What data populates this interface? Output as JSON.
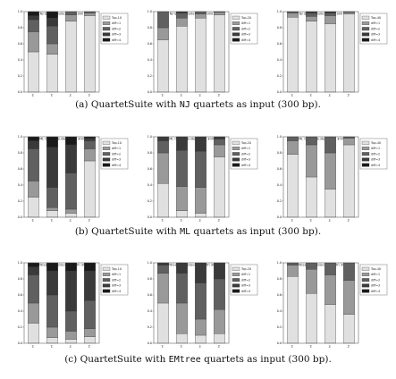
{
  "colors": {
    "top": "#e0e0e0",
    "diff1": "#999999",
    "diff2": "#606060",
    "diff3": "#3a3a3a",
    "diff4": "#1a1a1a",
    "frame": "#444444"
  },
  "legend_top_sizes": [
    "10",
    "20",
    "40"
  ],
  "rows": [
    {
      "caption": {
        "prefix": "(a) QuartetSuite with ",
        "code": "NJ",
        "suffix": " quartets as input (300 bp)."
      },
      "charts": [
        {
          "title": "NJ QuartetSuite length 300",
          "legend": [
            "Top-10",
            "diff=1",
            "diff=2",
            "diff=3",
            "diff=4"
          ],
          "categories": [
            "quartet",
            "quartet",
            "qpuzzle",
            "ntq"
          ],
          "yticks": [
            "0.0",
            "0.2",
            "0.4",
            "0.6",
            "0.8",
            "1.0"
          ],
          "series_values": [
            [
              0.5,
              0.47,
              0.88,
              0.95
            ],
            [
              0.25,
              0.13,
              0.08,
              0.03
            ],
            [
              0.15,
              0.22,
              0.04,
              0.02
            ],
            [
              0.05,
              0.1,
              0,
              0
            ],
            [
              0.05,
              0.08,
              0,
              0
            ]
          ]
        },
        {
          "title": "NJ QuartetSuite length 300",
          "legend": [
            "Top-20",
            "diff=1",
            "diff=2",
            "diff=3",
            "diff=4"
          ],
          "categories": [
            "quartet",
            "quartet",
            "qpuzzle",
            "ntq"
          ],
          "yticks": [
            "0.0",
            "0.2",
            "0.4",
            "0.6",
            "0.8",
            "1.0"
          ],
          "series_values": [
            [
              0.65,
              0.82,
              0.92,
              0.96
            ],
            [
              0.15,
              0.1,
              0.05,
              0.03
            ],
            [
              0.2,
              0.06,
              0.03,
              0.01
            ],
            [
              0,
              0.02,
              0,
              0
            ],
            [
              0,
              0,
              0,
              0
            ]
          ]
        },
        {
          "title": "NJ QuartetSuite length 300",
          "legend": [
            "Top-40",
            "diff=1",
            "diff=2",
            "diff=3",
            "diff=4"
          ],
          "categories": [
            "quartet",
            "quartet",
            "qpuzzle",
            "ntq"
          ],
          "yticks": [
            "0.0",
            "0.2",
            "0.4",
            "0.6",
            "0.8",
            "1.0"
          ],
          "series_values": [
            [
              0.93,
              0.88,
              0.85,
              0.97
            ],
            [
              0.05,
              0.06,
              0.1,
              0.02
            ],
            [
              0.02,
              0.04,
              0.03,
              0.01
            ],
            [
              0,
              0.02,
              0.02,
              0
            ],
            [
              0,
              0,
              0,
              0
            ]
          ]
        }
      ]
    },
    {
      "caption": {
        "prefix": "(b) QuartetSuite with ",
        "code": "ML",
        "suffix": " quartets as input (300 bp)."
      },
      "charts": [
        {
          "title": "ML QuartetSuite length 300",
          "legend": [
            "Top-10",
            "diff=1",
            "diff=2",
            "diff=3",
            "diff=4"
          ],
          "categories": [
            "quartet",
            "quartet",
            "qpuzzle",
            "ntq"
          ],
          "yticks": [
            "0.0",
            "0.2",
            "0.4",
            "0.6",
            "0.8",
            "1.0"
          ],
          "series_values": [
            [
              0.25,
              0.08,
              0.05,
              0.7
            ],
            [
              0.2,
              0.04,
              0.05,
              0.15
            ],
            [
              0.4,
              0.25,
              0.45,
              0.1
            ],
            [
              0.1,
              0.5,
              0.35,
              0.03
            ],
            [
              0.05,
              0.13,
              0.1,
              0.02
            ]
          ]
        },
        {
          "title": "ML QuartetSuite length 300",
          "legend": [
            "Top-20",
            "diff=1",
            "diff=2",
            "diff=3",
            "diff=4"
          ],
          "categories": [
            "quartet",
            "quartet",
            "qpuzzle",
            "ntq"
          ],
          "yticks": [
            "0.0",
            "0.2",
            "0.4",
            "0.6",
            "0.8",
            "1.0"
          ],
          "series_values": [
            [
              0.42,
              0.08,
              0.05,
              0.75
            ],
            [
              0.38,
              0.3,
              0.32,
              0.15
            ],
            [
              0.15,
              0.45,
              0.45,
              0.07
            ],
            [
              0.05,
              0.17,
              0.18,
              0.03
            ],
            [
              0,
              0,
              0,
              0
            ]
          ]
        },
        {
          "title": "ML QuartetSuite length 300",
          "legend": [
            "Top-40",
            "diff=1",
            "diff=2",
            "diff=3",
            "diff=4"
          ],
          "categories": [
            "quartet",
            "quartet",
            "qpuzzle",
            "ntq"
          ],
          "yticks": [
            "0.0",
            "0.2",
            "0.4",
            "0.6",
            "0.8",
            "1.0"
          ],
          "series_values": [
            [
              0.78,
              0.5,
              0.35,
              0.9
            ],
            [
              0.17,
              0.4,
              0.45,
              0.08
            ],
            [
              0.05,
              0.1,
              0.2,
              0.02
            ],
            [
              0,
              0,
              0,
              0
            ],
            [
              0,
              0,
              0,
              0
            ]
          ]
        }
      ]
    },
    {
      "caption": {
        "prefix": "(c) QuartetSuite with ",
        "code": "EMtree",
        "suffix": " quartets as input (300 bp)."
      },
      "charts": [
        {
          "title": "EMtree QuartetSuite length 300",
          "legend": [
            "Top-10",
            "diff=1",
            "diff=2",
            "diff=3",
            "diff=4"
          ],
          "categories": [
            "quartet",
            "quartet",
            "qpuzzle",
            "ntq"
          ],
          "yticks": [
            "0.0",
            "0.2",
            "0.4",
            "0.6",
            "0.8",
            "1.0"
          ],
          "series_values": [
            [
              0.25,
              0.07,
              0.05,
              0.08
            ],
            [
              0.25,
              0.13,
              0.1,
              0.1
            ],
            [
              0.35,
              0.4,
              0.25,
              0.35
            ],
            [
              0.1,
              0.3,
              0.5,
              0.37
            ],
            [
              0.05,
              0.1,
              0.1,
              0.1
            ]
          ]
        },
        {
          "title": "EMtree QuartetSuite length 300",
          "legend": [
            "Top-20",
            "diff=1",
            "diff=2",
            "diff=3",
            "diff=4"
          ],
          "categories": [
            "quartet",
            "quartet",
            "qpuzzle",
            "ntq"
          ],
          "yticks": [
            "0.0",
            "0.2",
            "0.4",
            "0.6",
            "0.8",
            "1.0"
          ],
          "series_values": [
            [
              0.5,
              0.12,
              0.1,
              0.12
            ],
            [
              0.37,
              0.38,
              0.2,
              0.3
            ],
            [
              0.1,
              0.37,
              0.45,
              0.38
            ],
            [
              0.03,
              0.13,
              0.25,
              0.2
            ],
            [
              0,
              0,
              0,
              0
            ]
          ]
        },
        {
          "title": "EMtree QuartetSuite length 300",
          "legend": [
            "Top-40",
            "diff=1",
            "diff=2",
            "diff=3",
            "diff=4"
          ],
          "categories": [
            "quartet",
            "quartet",
            "qpuzzle",
            "ntq"
          ],
          "yticks": [
            "0.0",
            "0.2",
            "0.4",
            "0.6",
            "0.8",
            "1.0"
          ],
          "series_values": [
            [
              0.83,
              0.62,
              0.48,
              0.36
            ],
            [
              0.14,
              0.3,
              0.37,
              0.42
            ],
            [
              0.03,
              0.08,
              0.15,
              0.22
            ],
            [
              0,
              0,
              0,
              0
            ],
            [
              0,
              0,
              0,
              0
            ]
          ]
        }
      ]
    }
  ],
  "chart_data": [
    {
      "type": "bar",
      "stacked": true,
      "title": "NJ QuartetSuite length 300",
      "categories": [
        "quartet",
        "quartet",
        "qpuzzle",
        "ntq"
      ],
      "ylim": [
        0,
        1
      ],
      "series": [
        {
          "name": "Top-10",
          "values": [
            0.5,
            0.47,
            0.88,
            0.95
          ]
        },
        {
          "name": "diff=1",
          "values": [
            0.25,
            0.13,
            0.08,
            0.03
          ]
        },
        {
          "name": "diff=2",
          "values": [
            0.15,
            0.22,
            0.04,
            0.02
          ]
        },
        {
          "name": "diff=3",
          "values": [
            0.05,
            0.1,
            0,
            0
          ]
        },
        {
          "name": "diff=4",
          "values": [
            0.05,
            0.08,
            0,
            0
          ]
        }
      ]
    },
    {
      "type": "bar",
      "stacked": true,
      "title": "NJ QuartetSuite length 300",
      "categories": [
        "quartet",
        "quartet",
        "qpuzzle",
        "ntq"
      ],
      "ylim": [
        0,
        1
      ],
      "series": [
        {
          "name": "Top-20",
          "values": [
            0.65,
            0.82,
            0.92,
            0.96
          ]
        },
        {
          "name": "diff=1",
          "values": [
            0.15,
            0.1,
            0.05,
            0.03
          ]
        },
        {
          "name": "diff=2",
          "values": [
            0.2,
            0.06,
            0.03,
            0.01
          ]
        },
        {
          "name": "diff=3",
          "values": [
            0,
            0.02,
            0,
            0
          ]
        },
        {
          "name": "diff=4",
          "values": [
            0,
            0,
            0,
            0
          ]
        }
      ]
    },
    {
      "type": "bar",
      "stacked": true,
      "title": "NJ QuartetSuite length 300",
      "categories": [
        "quartet",
        "quartet",
        "qpuzzle",
        "ntq"
      ],
      "ylim": [
        0,
        1
      ],
      "series": [
        {
          "name": "Top-40",
          "values": [
            0.93,
            0.88,
            0.85,
            0.97
          ]
        },
        {
          "name": "diff=1",
          "values": [
            0.05,
            0.06,
            0.1,
            0.02
          ]
        },
        {
          "name": "diff=2",
          "values": [
            0.02,
            0.04,
            0.03,
            0.01
          ]
        },
        {
          "name": "diff=3",
          "values": [
            0,
            0.02,
            0.02,
            0
          ]
        },
        {
          "name": "diff=4",
          "values": [
            0,
            0,
            0,
            0
          ]
        }
      ]
    },
    {
      "type": "bar",
      "stacked": true,
      "title": "ML QuartetSuite length 300",
      "categories": [
        "quartet",
        "quartet",
        "qpuzzle",
        "ntq"
      ],
      "ylim": [
        0,
        1
      ],
      "series": [
        {
          "name": "Top-10",
          "values": [
            0.25,
            0.08,
            0.05,
            0.7
          ]
        },
        {
          "name": "diff=1",
          "values": [
            0.2,
            0.04,
            0.05,
            0.15
          ]
        },
        {
          "name": "diff=2",
          "values": [
            0.4,
            0.25,
            0.45,
            0.1
          ]
        },
        {
          "name": "diff=3",
          "values": [
            0.1,
            0.5,
            0.35,
            0.03
          ]
        },
        {
          "name": "diff=4",
          "values": [
            0.05,
            0.13,
            0.1,
            0.02
          ]
        }
      ]
    },
    {
      "type": "bar",
      "stacked": true,
      "title": "ML QuartetSuite length 300",
      "categories": [
        "quartet",
        "quartet",
        "qpuzzle",
        "ntq"
      ],
      "ylim": [
        0,
        1
      ],
      "series": [
        {
          "name": "Top-20",
          "values": [
            0.42,
            0.08,
            0.05,
            0.75
          ]
        },
        {
          "name": "diff=1",
          "values": [
            0.38,
            0.3,
            0.32,
            0.15
          ]
        },
        {
          "name": "diff=2",
          "values": [
            0.15,
            0.45,
            0.45,
            0.07
          ]
        },
        {
          "name": "diff=3",
          "values": [
            0.05,
            0.17,
            0.18,
            0.03
          ]
        },
        {
          "name": "diff=4",
          "values": [
            0,
            0,
            0,
            0
          ]
        }
      ]
    },
    {
      "type": "bar",
      "stacked": true,
      "title": "ML QuartetSuite length 300",
      "categories": [
        "quartet",
        "quartet",
        "qpuzzle",
        "ntq"
      ],
      "ylim": [
        0,
        1
      ],
      "series": [
        {
          "name": "Top-40",
          "values": [
            0.78,
            0.5,
            0.35,
            0.9
          ]
        },
        {
          "name": "diff=1",
          "values": [
            0.17,
            0.4,
            0.45,
            0.08
          ]
        },
        {
          "name": "diff=2",
          "values": [
            0.05,
            0.1,
            0.2,
            0.02
          ]
        },
        {
          "name": "diff=3",
          "values": [
            0,
            0,
            0,
            0
          ]
        },
        {
          "name": "diff=4",
          "values": [
            0,
            0,
            0,
            0
          ]
        }
      ]
    },
    {
      "type": "bar",
      "stacked": true,
      "title": "EMtree QuartetSuite length 300",
      "categories": [
        "quartet",
        "quartet",
        "qpuzzle",
        "ntq"
      ],
      "ylim": [
        0,
        1
      ],
      "series": [
        {
          "name": "Top-10",
          "values": [
            0.25,
            0.07,
            0.05,
            0.08
          ]
        },
        {
          "name": "diff=1",
          "values": [
            0.25,
            0.13,
            0.1,
            0.1
          ]
        },
        {
          "name": "diff=2",
          "values": [
            0.35,
            0.4,
            0.25,
            0.35
          ]
        },
        {
          "name": "diff=3",
          "values": [
            0.1,
            0.3,
            0.5,
            0.37
          ]
        },
        {
          "name": "diff=4",
          "values": [
            0.05,
            0.1,
            0.1,
            0.1
          ]
        }
      ]
    },
    {
      "type": "bar",
      "stacked": true,
      "title": "EMtree QuartetSuite length 300",
      "categories": [
        "quartet",
        "quartet",
        "qpuzzle",
        "ntq"
      ],
      "ylim": [
        0,
        1
      ],
      "series": [
        {
          "name": "Top-20",
          "values": [
            0.5,
            0.12,
            0.1,
            0.12
          ]
        },
        {
          "name": "diff=1",
          "values": [
            0.37,
            0.38,
            0.2,
            0.3
          ]
        },
        {
          "name": "diff=2",
          "values": [
            0.1,
            0.37,
            0.45,
            0.38
          ]
        },
        {
          "name": "diff=3",
          "values": [
            0.03,
            0.13,
            0.25,
            0.2
          ]
        },
        {
          "name": "diff=4",
          "values": [
            0,
            0,
            0,
            0
          ]
        }
      ]
    },
    {
      "type": "bar",
      "stacked": true,
      "title": "EMtree QuartetSuite length 300",
      "categories": [
        "quartet",
        "quartet",
        "qpuzzle",
        "ntq"
      ],
      "ylim": [
        0,
        1
      ],
      "series": [
        {
          "name": "Top-40",
          "values": [
            0.83,
            0.62,
            0.48,
            0.36
          ]
        },
        {
          "name": "diff=1",
          "values": [
            0.14,
            0.3,
            0.37,
            0.42
          ]
        },
        {
          "name": "diff=2",
          "values": [
            0.03,
            0.08,
            0.15,
            0.22
          ]
        },
        {
          "name": "diff=3",
          "values": [
            0,
            0,
            0,
            0
          ]
        },
        {
          "name": "diff=4",
          "values": [
            0,
            0,
            0,
            0
          ]
        }
      ]
    }
  ]
}
